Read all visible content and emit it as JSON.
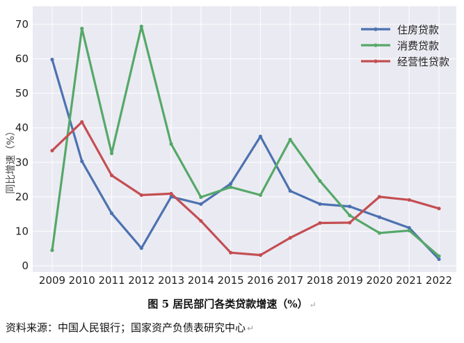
{
  "chart_data": {
    "type": "line",
    "categories": [
      "2009",
      "2010",
      "2011",
      "2012",
      "2013",
      "2014",
      "2015",
      "2016",
      "2017",
      "2018",
      "2019",
      "2020",
      "2021",
      "2022"
    ],
    "ylabel": "同比增速（%）",
    "ylim": [
      0,
      70
    ],
    "yticks": [
      0,
      10,
      20,
      30,
      40,
      50,
      60,
      70
    ],
    "grid": true,
    "legend_position": "top-right",
    "series": [
      {
        "name": "住房贷款",
        "color": "#4c72b0",
        "values": [
          59.8,
          30.3,
          15.2,
          5.1,
          20.0,
          17.9,
          23.8,
          37.5,
          21.7,
          17.9,
          17.2,
          14.1,
          11.0,
          1.9
        ]
      },
      {
        "name": "消费贷款",
        "color": "#55a868",
        "values": [
          4.5,
          68.8,
          32.6,
          69.4,
          35.3,
          19.9,
          22.8,
          20.5,
          36.6,
          24.6,
          14.6,
          9.5,
          10.2,
          2.8
        ]
      },
      {
        "name": "经营性贷款",
        "color": "#c44e52",
        "values": [
          33.4,
          41.7,
          26.2,
          20.5,
          20.9,
          13.0,
          3.8,
          3.1,
          8.1,
          12.4,
          12.5,
          20.0,
          19.1,
          16.6
        ]
      }
    ]
  },
  "caption": {
    "figure_label": "图 5",
    "title": "居民部门各类贷款增速（%）",
    "mark": "↵"
  },
  "source": {
    "text": "资料来源：中国人民银行；国家资产负债表研究中心",
    "mark": "↵"
  }
}
